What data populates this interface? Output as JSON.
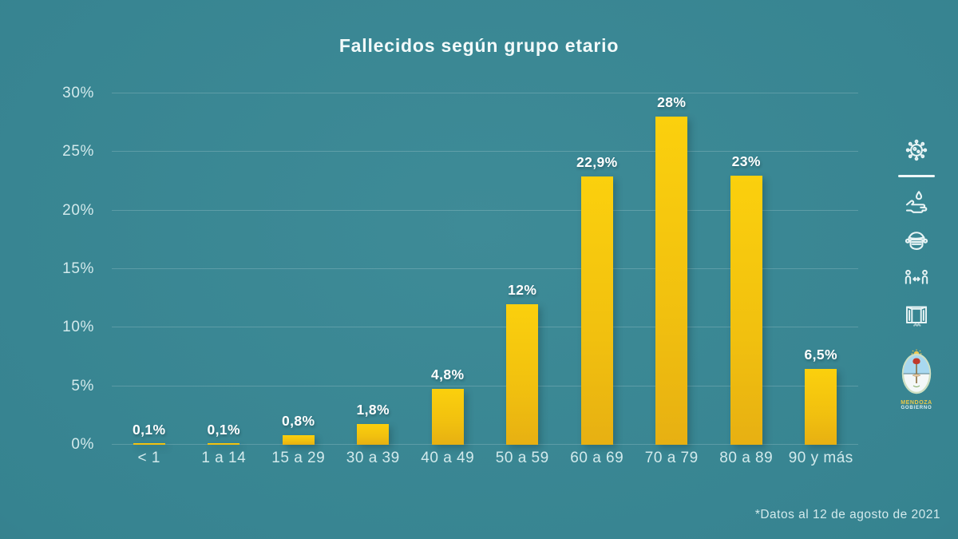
{
  "title": "Fallecidos según grupo etario",
  "footnote": "*Datos al 12 de agosto de 2021",
  "colors": {
    "background_center": "#3e8b97",
    "background_edge": "#2a6873",
    "bar_top": "#fbd00d",
    "bar_bottom": "#e7b012",
    "title_text": "#f2fafa",
    "axis_text": "#d3eaec",
    "value_label_text": "#ffffff",
    "gridline": "rgba(255,255,255,0.18)"
  },
  "chart_data": {
    "type": "bar",
    "title": "Fallecidos según grupo etario",
    "categories": [
      "< 1",
      "1 a 14",
      "15 a 29",
      "30 a 39",
      "40 a 49",
      "50 a 59",
      "60 a 69",
      "70 a 79",
      "80 a 89",
      "90 y más"
    ],
    "values": [
      0.1,
      0.1,
      0.8,
      1.8,
      4.8,
      12,
      22.9,
      28,
      23,
      6.5
    ],
    "value_labels": [
      "0,1%",
      "0,1%",
      "0,8%",
      "1,8%",
      "4,8%",
      "12%",
      "22,9%",
      "28%",
      "23%",
      "6,5%"
    ],
    "xlabel": "",
    "ylabel": "",
    "ylim": [
      0,
      30
    ],
    "y_ticks": [
      0,
      5,
      10,
      15,
      20,
      25,
      30
    ],
    "y_tick_labels": [
      "0%",
      "5%",
      "10%",
      "15%",
      "20%",
      "25%",
      "30%"
    ],
    "grid": true,
    "legend_position": "none"
  },
  "sidebar": {
    "icons": [
      {
        "name": "virus-icon"
      },
      {
        "name": "hand-washing-icon"
      },
      {
        "name": "face-mask-icon"
      },
      {
        "name": "social-distancing-icon"
      },
      {
        "name": "open-window-icon"
      }
    ],
    "logo": {
      "line1": "MENDOZA",
      "line2": "GOBIERNO"
    }
  }
}
